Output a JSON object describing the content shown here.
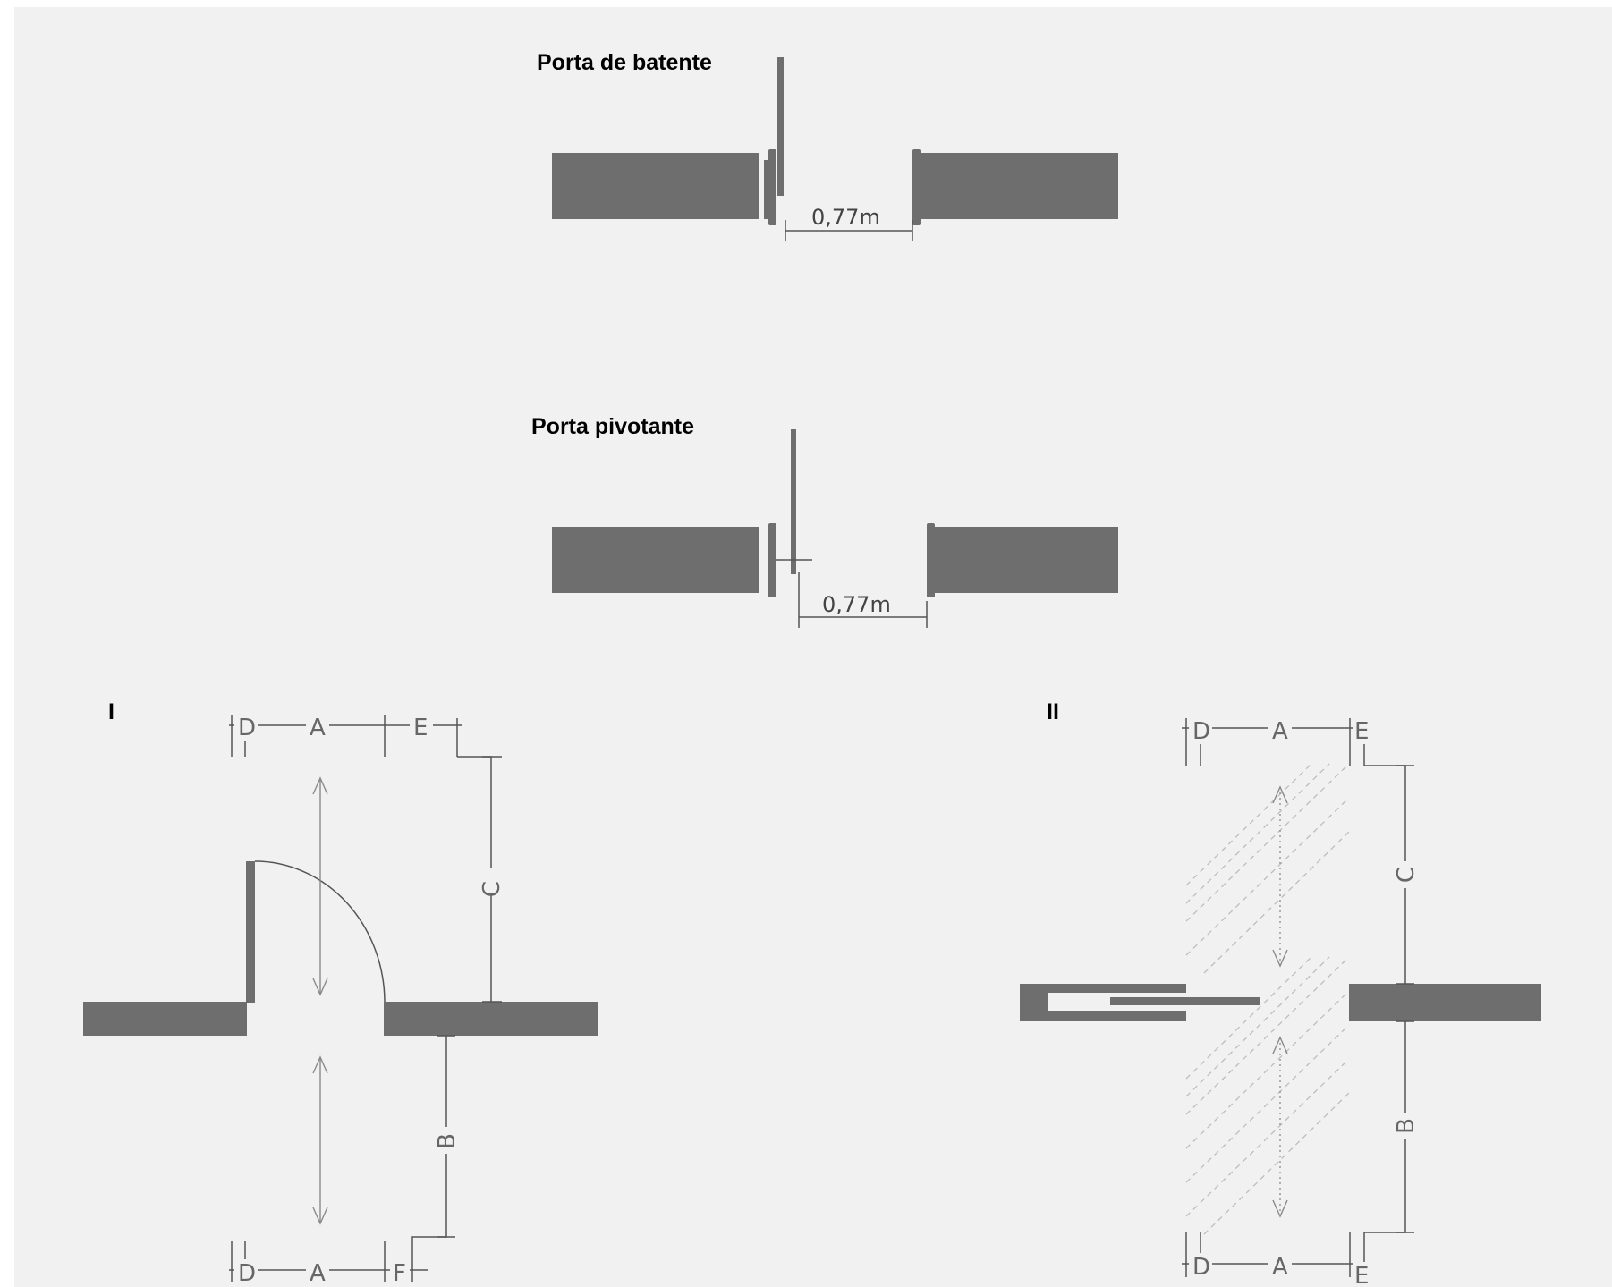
{
  "figures": {
    "swing_door": {
      "title": "Porta de batente",
      "width_label": "0,77m"
    },
    "pivot_door": {
      "title": "Porta pivotante",
      "width_label": "0,77m"
    },
    "diagram_i": {
      "roman_label": "I",
      "top_labels": {
        "d": "D",
        "a": "A",
        "e": "E"
      },
      "side_labels": {
        "c": "C",
        "b": "B"
      },
      "bottom_labels": {
        "d": "D",
        "a": "A",
        "f": "F"
      }
    },
    "diagram_ii": {
      "roman_label": "II",
      "top_labels": {
        "d": "D",
        "a": "A",
        "e": "E"
      },
      "side_labels": {
        "c": "C",
        "b": "B"
      },
      "bottom_labels": {
        "d": "D",
        "a": "A",
        "e": "E"
      }
    }
  },
  "colors": {
    "background": "#f1f1f1",
    "wall": "#6e6e6e",
    "dimension_line": "#555555",
    "hatch": "#bdbdbd"
  },
  "icons": [
    "door-leaf",
    "door-swing-arc",
    "dimension-arrow"
  ]
}
